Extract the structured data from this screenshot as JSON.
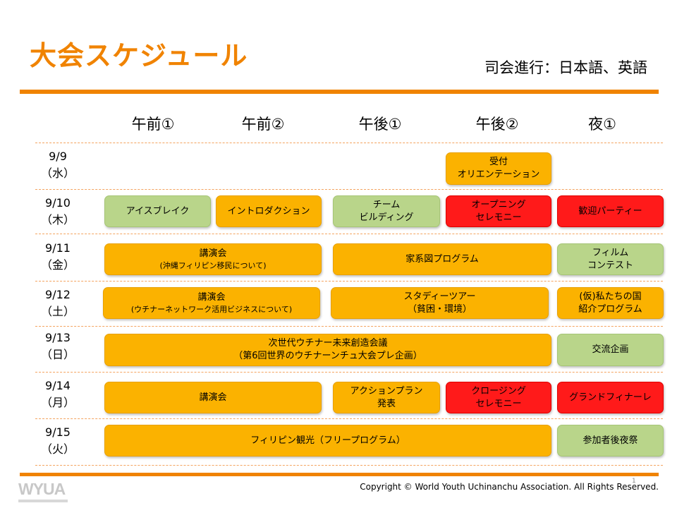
{
  "title": "大会スケジュール",
  "subtitle": "司会進行：日本語、英語",
  "columns": [
    "午前①",
    "午前②",
    "午後①",
    "午後②",
    "夜①"
  ],
  "rows": [
    {
      "date": "9/9",
      "day": "（水）"
    },
    {
      "date": "9/10",
      "day": "（木）"
    },
    {
      "date": "9/11",
      "day": "（金）"
    },
    {
      "date": "9/12",
      "day": "（土）"
    },
    {
      "date": "9/13",
      "day": "（日）"
    },
    {
      "date": "9/14",
      "day": "（月）"
    },
    {
      "date": "9/15",
      "day": "（火）"
    }
  ],
  "events": {
    "d09_reception": "受付\nオリエンテーション",
    "d10_icebreak": "アイスブレイク",
    "d10_intro": "イントロダクション",
    "d10_team": "チーム\nビルディング",
    "d10_opening": "オープニング\nセレモニー",
    "d10_welcome": "歓迎パーティー",
    "d11_lecture": "講演会",
    "d11_lecture_sub": "(沖縄フィリピン移民について)",
    "d11_family": "家系図プログラム",
    "d11_film": "フィルム\nコンテスト",
    "d12_lecture": "講演会",
    "d12_lecture_sub": "(ウチナーネットワーク活用ビジネスについて)",
    "d12_study": "スタディーツアー\n（貧困・環境）",
    "d12_intro_country": "(仮)私たちの国\n紹介プログラム",
    "d13_conference": "次世代ウチナー未来創造会議\n（第6回世界のウチナーンチュ大会プレ企画）",
    "d13_exchange": "交流企画",
    "d14_lecture": "講演会",
    "d14_action": "アクションプラン\n発表",
    "d14_closing": "クロージング\nセレモニー",
    "d14_finale": "グランドフィナーレ",
    "d15_tour": "フィリピン観光（フリープログラム）",
    "d15_party": "参加者後夜祭"
  },
  "footer": {
    "logo": "WYUA",
    "copyright": "Copyright © World Youth Uchinanchu Association. All Rights Reserved.",
    "page": "1"
  },
  "colors": {
    "accent": "#f08300",
    "yellow": "#fbb200",
    "green": "#b9d58a",
    "red": "#ff1a1a"
  }
}
